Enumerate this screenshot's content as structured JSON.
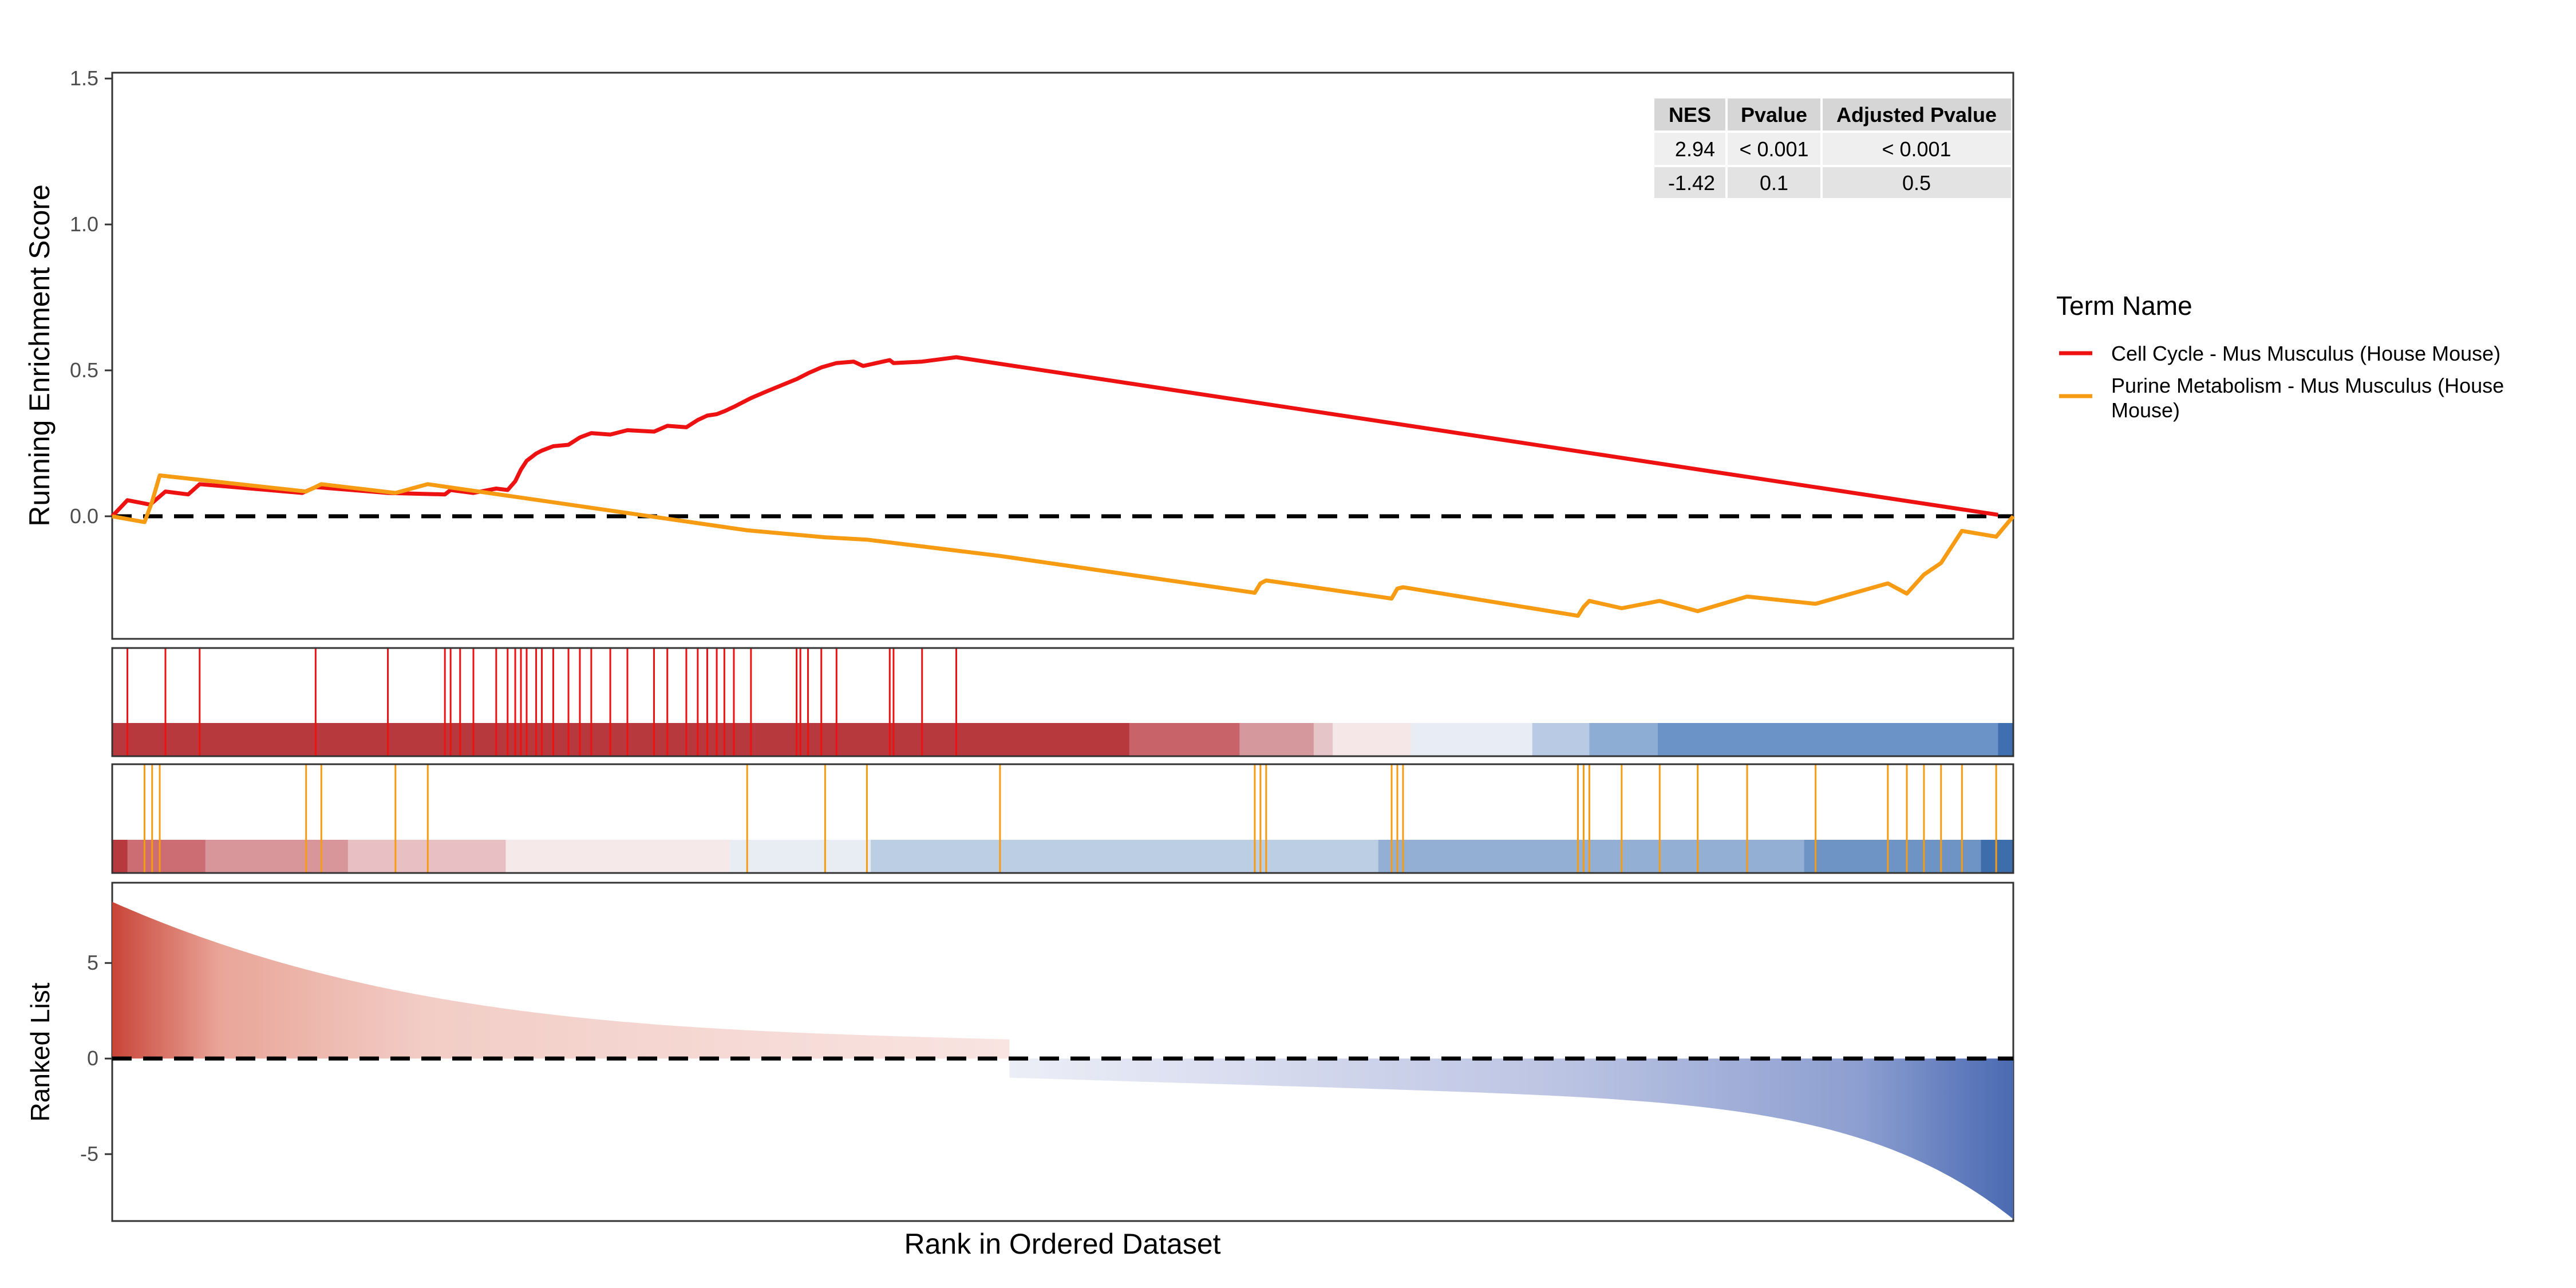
{
  "chart_data": {
    "type": "gsea",
    "xlabel": "Rank in Ordered Dataset",
    "n_genes": 1000,
    "zero_cross_rank": 472,
    "panels": {
      "running_score": {
        "ylabel": "Running Enrichment Score",
        "ylim": [
          -0.42,
          1.52
        ],
        "yticks": [
          0.0,
          0.5,
          1.0,
          1.5
        ],
        "tick_labels": [
          "0.0",
          "0.5",
          "1.0",
          "1.5"
        ]
      },
      "ranked_list": {
        "ylabel": "Ranked List",
        "ylim": [
          -8.5,
          9.2
        ],
        "yticks": [
          -5,
          0,
          5
        ],
        "tick_labels": [
          "-5",
          "0",
          "5"
        ]
      }
    },
    "legend": {
      "title": "Term Name",
      "entries": [
        {
          "label": "Cell Cycle - Mus Musculus (House Mouse)",
          "color": "#ee1111"
        },
        {
          "label_line1": "Purine Metabolism - Mus Musculus (House",
          "label_line2": "Mouse)",
          "color": "#f79b12"
        }
      ]
    },
    "stats_table": {
      "headers": [
        "NES",
        "Pvalue",
        "Adjusted Pvalue"
      ],
      "rows": [
        [
          "2.94",
          "< 0.001",
          "< 0.001"
        ],
        [
          "-1.42",
          "0.1",
          "0.5"
        ]
      ]
    },
    "series": [
      {
        "name": "Cell Cycle - Mus Musculus (House Mouse)",
        "color": "#ee1111",
        "hits": [
          8,
          28,
          46,
          107,
          145,
          175,
          178,
          183,
          190,
          202,
          208,
          212,
          215,
          218,
          223,
          226,
          232,
          240,
          246,
          252,
          262,
          271,
          285,
          292,
          302,
          308,
          313,
          318,
          322,
          327,
          336,
          360,
          362,
          366,
          373,
          381,
          409,
          411,
          426,
          444
        ],
        "running_score": [
          [
            0,
            0.0
          ],
          [
            8,
            0.055
          ],
          [
            20,
            0.04
          ],
          [
            28,
            0.085
          ],
          [
            40,
            0.075
          ],
          [
            46,
            0.11
          ],
          [
            100,
            0.08
          ],
          [
            107,
            0.1
          ],
          [
            145,
            0.08
          ],
          [
            175,
            0.075
          ],
          [
            178,
            0.09
          ],
          [
            190,
            0.08
          ],
          [
            202,
            0.095
          ],
          [
            208,
            0.09
          ],
          [
            212,
            0.12
          ],
          [
            215,
            0.16
          ],
          [
            218,
            0.19
          ],
          [
            223,
            0.215
          ],
          [
            226,
            0.225
          ],
          [
            232,
            0.24
          ],
          [
            240,
            0.245
          ],
          [
            246,
            0.27
          ],
          [
            252,
            0.285
          ],
          [
            262,
            0.28
          ],
          [
            271,
            0.295
          ],
          [
            285,
            0.29
          ],
          [
            292,
            0.31
          ],
          [
            302,
            0.305
          ],
          [
            308,
            0.33
          ],
          [
            313,
            0.345
          ],
          [
            318,
            0.35
          ],
          [
            322,
            0.36
          ],
          [
            327,
            0.375
          ],
          [
            336,
            0.405
          ],
          [
            345,
            0.43
          ],
          [
            360,
            0.47
          ],
          [
            366,
            0.49
          ],
          [
            373,
            0.51
          ],
          [
            381,
            0.525
          ],
          [
            390,
            0.53
          ],
          [
            395,
            0.515
          ],
          [
            409,
            0.535
          ],
          [
            411,
            0.525
          ],
          [
            426,
            0.53
          ],
          [
            444,
            0.545
          ],
          [
            992,
            0.005
          ]
        ]
      },
      {
        "name": "Purine Metabolism - Mus Musculus (House Mouse)",
        "color": "#f79b12",
        "hits": [
          17,
          21,
          25,
          102,
          110,
          149,
          166,
          334,
          375,
          397,
          467,
          601,
          604,
          607,
          673,
          676,
          679,
          771,
          774,
          777,
          794,
          814,
          834,
          860,
          896,
          934,
          944,
          953,
          962,
          973,
          991
        ],
        "running_score": [
          [
            0,
            0.0
          ],
          [
            17,
            -0.02
          ],
          [
            21,
            0.05
          ],
          [
            25,
            0.14
          ],
          [
            102,
            0.085
          ],
          [
            110,
            0.11
          ],
          [
            149,
            0.08
          ],
          [
            166,
            0.11
          ],
          [
            334,
            -0.048
          ],
          [
            375,
            -0.072
          ],
          [
            397,
            -0.08
          ],
          [
            467,
            -0.136
          ],
          [
            601,
            -0.262
          ],
          [
            604,
            -0.23
          ],
          [
            607,
            -0.22
          ],
          [
            673,
            -0.282
          ],
          [
            676,
            -0.248
          ],
          [
            679,
            -0.243
          ],
          [
            771,
            -0.341
          ],
          [
            774,
            -0.31
          ],
          [
            777,
            -0.29
          ],
          [
            794,
            -0.315
          ],
          [
            814,
            -0.29
          ],
          [
            834,
            -0.325
          ],
          [
            860,
            -0.275
          ],
          [
            896,
            -0.3
          ],
          [
            934,
            -0.23
          ],
          [
            944,
            -0.265
          ],
          [
            953,
            -0.2
          ],
          [
            962,
            -0.16
          ],
          [
            973,
            -0.05
          ],
          [
            991,
            -0.07
          ],
          [
            1000,
            0.0
          ]
        ]
      }
    ],
    "rank_color_bands_1": [
      [
        0,
        535,
        "#b8393d"
      ],
      [
        535,
        593,
        "#c8636a"
      ],
      [
        593,
        632,
        "#d5989d"
      ],
      [
        632,
        642,
        "#e6c5c8"
      ],
      [
        642,
        683,
        "#f5e7e8"
      ],
      [
        683,
        747,
        "#e8ecf4"
      ],
      [
        747,
        777,
        "#b9cbe4"
      ],
      [
        777,
        813,
        "#8eadd4"
      ],
      [
        813,
        992,
        "#6b93c7"
      ],
      [
        992,
        1000,
        "#3f6fb0"
      ]
    ],
    "rank_color_bands_2": [
      [
        0,
        8,
        "#b8393d"
      ],
      [
        8,
        49,
        "#cb6d72"
      ],
      [
        49,
        124,
        "#d8969b"
      ],
      [
        124,
        207,
        "#e8c0c3"
      ],
      [
        207,
        325,
        "#f6e9ea"
      ],
      [
        325,
        399,
        "#e8edf4"
      ],
      [
        399,
        666,
        "#bccee3"
      ],
      [
        666,
        890,
        "#93b0d4"
      ],
      [
        890,
        983,
        "#6e94c5"
      ],
      [
        983,
        1000,
        "#3d6eab"
      ]
    ]
  }
}
